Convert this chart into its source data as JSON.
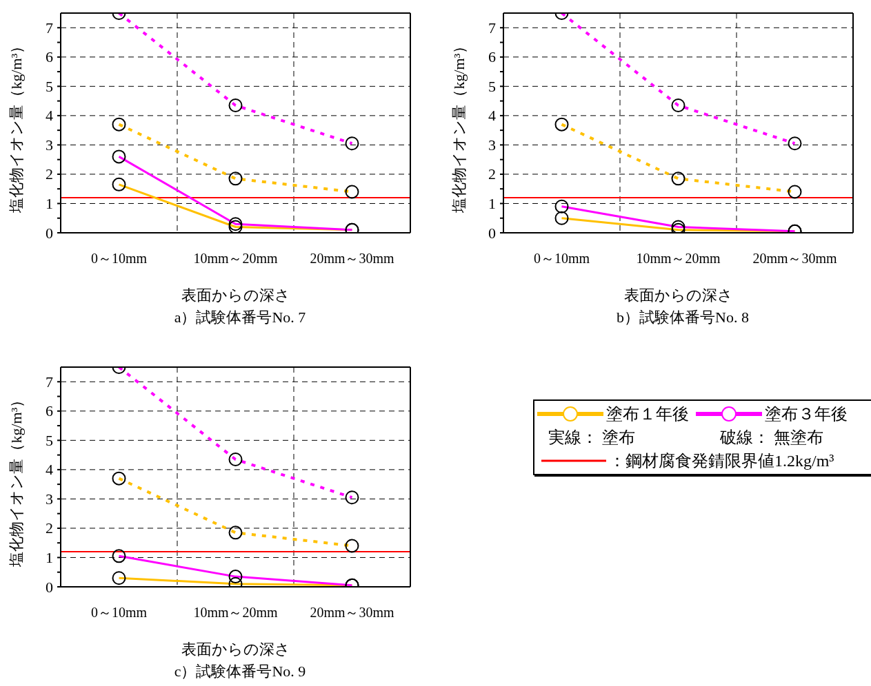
{
  "chart_data": [
    {
      "type": "line",
      "title": "a）試験体番号No. 7",
      "xlabel": "表面からの深さ",
      "ylabel": "塩化物イオン量（kg/m³）",
      "categories": [
        "0～10mm",
        "10mm～20mm",
        "20mm～30mm"
      ],
      "ylim": [
        0,
        7.5
      ],
      "yticks": [
        0,
        {
          "value": 0.5,
          "label": null
        },
        1,
        {
          "value": 1.5,
          "label": null
        },
        2,
        {
          "value": 2.5,
          "label": null
        },
        3,
        {
          "value": 3.5,
          "label": null
        },
        4,
        {
          "value": 4.5,
          "label": null
        },
        5,
        {
          "value": 5.5,
          "label": null
        },
        6,
        {
          "value": 6.5,
          "label": null
        },
        7
      ],
      "grid": true,
      "marker": "circle",
      "legend": false,
      "series": [
        {
          "color": "#ffc000",
          "line_style": "solid",
          "values": [
            1.65,
            0.2,
            0.1
          ]
        },
        {
          "color": "#ffc000",
          "line_style": "dashed",
          "values": [
            3.7,
            1.85,
            1.4
          ]
        },
        {
          "color": "#ff00ff",
          "line_style": "solid",
          "values": [
            2.6,
            0.3,
            0.1
          ]
        },
        {
          "color": "#ff00ff",
          "line_style": "dashed",
          "values": [
            7.5,
            4.35,
            3.05
          ]
        }
      ],
      "ref_lines": [
        {
          "axis": "y",
          "value": 1.2,
          "color": "#ff0000"
        }
      ]
    },
    {
      "type": "line",
      "title": "b）試験体番号No. 8",
      "xlabel": "表面からの深さ",
      "ylabel": "塩化物イオン量（kg/m³）",
      "categories": [
        "0～10mm",
        "10mm～20mm",
        "20mm～30mm"
      ],
      "ylim": [
        0,
        7.5
      ],
      "yticks": [
        0,
        {
          "value": 0.5,
          "label": null
        },
        1,
        {
          "value": 1.5,
          "label": null
        },
        2,
        {
          "value": 2.5,
          "label": null
        },
        3,
        {
          "value": 3.5,
          "label": null
        },
        4,
        {
          "value": 4.5,
          "label": null
        },
        5,
        {
          "value": 5.5,
          "label": null
        },
        6,
        {
          "value": 6.5,
          "label": null
        },
        7
      ],
      "grid": true,
      "marker": "circle",
      "legend": false,
      "series": [
        {
          "color": "#ffc000",
          "line_style": "solid",
          "values": [
            0.5,
            0.1,
            0.05
          ]
        },
        {
          "color": "#ffc000",
          "line_style": "dashed",
          "values": [
            3.7,
            1.85,
            1.4
          ]
        },
        {
          "color": "#ff00ff",
          "line_style": "solid",
          "values": [
            0.9,
            0.2,
            0.05
          ]
        },
        {
          "color": "#ff00ff",
          "line_style": "dashed",
          "values": [
            7.5,
            4.35,
            3.05
          ]
        }
      ],
      "ref_lines": [
        {
          "axis": "y",
          "value": 1.2,
          "color": "#ff0000"
        }
      ]
    },
    {
      "type": "line",
      "title": "c）試験体番号No. 9",
      "xlabel": "表面からの深さ",
      "ylabel": "塩化物イオン量（kg/m³）",
      "categories": [
        "0～10mm",
        "10mm～20mm",
        "20mm～30mm"
      ],
      "ylim": [
        0,
        7.5
      ],
      "yticks": [
        0,
        {
          "value": 0.5,
          "label": null
        },
        1,
        {
          "value": 1.5,
          "label": null
        },
        2,
        {
          "value": 2.5,
          "label": null
        },
        3,
        {
          "value": 3.5,
          "label": null
        },
        4,
        {
          "value": 4.5,
          "label": null
        },
        5,
        {
          "value": 5.5,
          "label": null
        },
        6,
        {
          "value": 6.5,
          "label": null
        },
        7
      ],
      "grid": true,
      "marker": "circle",
      "legend": "right",
      "annotations": [
        "実線： 塗布",
        "破線： 無塗布"
      ],
      "series": [
        {
          "name": "塗布１年後",
          "color": "#ffc000",
          "line_style": "solid",
          "values": [
            0.3,
            0.1,
            0.05
          ]
        },
        {
          "color": "#ffc000",
          "line_style": "dashed",
          "values": [
            3.7,
            1.85,
            1.4
          ]
        },
        {
          "name": "塗布３年後",
          "color": "#ff00ff",
          "line_style": "solid",
          "values": [
            1.05,
            0.35,
            0.05
          ]
        },
        {
          "color": "#ff00ff",
          "line_style": "dashed",
          "values": [
            7.5,
            4.35,
            3.05
          ]
        }
      ],
      "ref_lines": [
        {
          "axis": "y",
          "value": 1.2,
          "color": "#ff0000",
          "label": "：鋼材腐食発錆限界値1.2kg/m³"
        }
      ]
    }
  ]
}
